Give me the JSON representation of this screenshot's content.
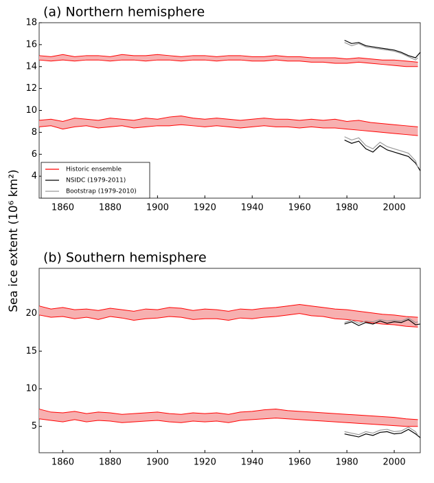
{
  "chart_data": [
    {
      "type": "band-line",
      "title": "(a) Northern hemisphere",
      "ylabel": "Sea ice extent (10⁶ km²)",
      "legend": "lower left",
      "xlim": [
        1850,
        2011
      ],
      "ylim": [
        2,
        18
      ],
      "xticks": [
        1860,
        1880,
        1900,
        1920,
        1940,
        1960,
        1980,
        2000
      ],
      "yticks": [
        4,
        6,
        8,
        10,
        12,
        14,
        16,
        18
      ],
      "x": [
        1850,
        1855,
        1860,
        1865,
        1870,
        1875,
        1880,
        1885,
        1890,
        1895,
        1900,
        1905,
        1910,
        1915,
        1920,
        1925,
        1930,
        1935,
        1940,
        1945,
        1950,
        1955,
        1960,
        1965,
        1970,
        1975,
        1980,
        1985,
        1990,
        1995,
        2000,
        2005,
        2010
      ],
      "bands": [
        {
          "name": "Historic ensemble",
          "color": "#ff0000",
          "fill": "#f7b0b0",
          "low": [
            14.6,
            14.5,
            14.6,
            14.5,
            14.6,
            14.6,
            14.5,
            14.6,
            14.6,
            14.5,
            14.6,
            14.6,
            14.5,
            14.6,
            14.6,
            14.5,
            14.6,
            14.6,
            14.5,
            14.5,
            14.6,
            14.5,
            14.5,
            14.4,
            14.4,
            14.3,
            14.3,
            14.4,
            14.3,
            14.2,
            14.1,
            14.0,
            14.0
          ],
          "high": [
            15.0,
            14.9,
            15.1,
            14.9,
            15.0,
            15.0,
            14.9,
            15.1,
            15.0,
            15.0,
            15.1,
            15.0,
            14.9,
            15.0,
            15.0,
            14.9,
            15.0,
            15.0,
            14.9,
            14.9,
            15.0,
            14.9,
            14.9,
            14.8,
            14.8,
            14.8,
            14.7,
            14.8,
            14.7,
            14.6,
            14.6,
            14.5,
            14.4
          ]
        },
        {
          "color": "#ff0000",
          "fill": "#f7b0b0",
          "low": [
            8.5,
            8.6,
            8.3,
            8.5,
            8.6,
            8.4,
            8.5,
            8.6,
            8.4,
            8.5,
            8.6,
            8.6,
            8.7,
            8.6,
            8.5,
            8.6,
            8.5,
            8.4,
            8.5,
            8.6,
            8.5,
            8.5,
            8.4,
            8.5,
            8.4,
            8.4,
            8.3,
            8.2,
            8.1,
            8.0,
            7.9,
            7.8,
            7.7
          ],
          "high": [
            9.1,
            9.2,
            9.0,
            9.3,
            9.2,
            9.1,
            9.3,
            9.2,
            9.1,
            9.3,
            9.2,
            9.4,
            9.5,
            9.3,
            9.2,
            9.3,
            9.2,
            9.1,
            9.2,
            9.3,
            9.2,
            9.2,
            9.1,
            9.2,
            9.1,
            9.2,
            9.0,
            9.1,
            8.9,
            8.8,
            8.7,
            8.6,
            8.5
          ]
        }
      ],
      "series": [
        {
          "name": "NSIDC (1979-2011)",
          "color": "#000000",
          "x": [
            1979,
            1982,
            1985,
            1988,
            1991,
            1994,
            1997,
            2000,
            2003,
            2006,
            2009,
            2011
          ],
          "values": [
            16.4,
            16.1,
            16.2,
            15.9,
            15.8,
            15.7,
            15.6,
            15.5,
            15.3,
            15.0,
            14.8,
            15.3
          ]
        },
        {
          "name": "Bootstrap (1979-2010)",
          "color": "#999999",
          "x": [
            1979,
            1982,
            1985,
            1988,
            1991,
            1994,
            1997,
            2000,
            2003,
            2006,
            2009,
            2010
          ],
          "values": [
            16.2,
            15.9,
            16.1,
            15.8,
            15.7,
            15.6,
            15.5,
            15.4,
            15.2,
            14.9,
            14.6,
            14.8
          ]
        },
        {
          "color": "#000000",
          "x": [
            1979,
            1982,
            1985,
            1988,
            1991,
            1994,
            1997,
            2000,
            2003,
            2006,
            2009,
            2011
          ],
          "values": [
            7.3,
            7.0,
            7.2,
            6.5,
            6.2,
            6.8,
            6.4,
            6.2,
            6.0,
            5.8,
            5.2,
            4.5
          ]
        },
        {
          "color": "#999999",
          "x": [
            1979,
            1982,
            1985,
            1988,
            1991,
            1994,
            1997,
            2000,
            2003,
            2006,
            2009,
            2010
          ],
          "values": [
            7.6,
            7.3,
            7.5,
            6.8,
            6.5,
            7.1,
            6.7,
            6.5,
            6.3,
            6.1,
            5.4,
            4.8
          ]
        }
      ]
    },
    {
      "type": "band-line",
      "title": "(b) Southern hemisphere",
      "xlim": [
        1850,
        2011
      ],
      "ylim": [
        1.5,
        26
      ],
      "xticks": [
        1860,
        1880,
        1900,
        1920,
        1940,
        1960,
        1980,
        2000
      ],
      "yticks": [
        5,
        10,
        15,
        20
      ],
      "x": [
        1850,
        1855,
        1860,
        1865,
        1870,
        1875,
        1880,
        1885,
        1890,
        1895,
        1900,
        1905,
        1910,
        1915,
        1920,
        1925,
        1930,
        1935,
        1940,
        1945,
        1950,
        1955,
        1960,
        1965,
        1970,
        1975,
        1980,
        1985,
        1990,
        1995,
        2000,
        2005,
        2010
      ],
      "bands": [
        {
          "color": "#ff0000",
          "fill": "#f7b0b0",
          "low": [
            19.8,
            19.5,
            19.6,
            19.3,
            19.5,
            19.2,
            19.6,
            19.4,
            19.1,
            19.3,
            19.4,
            19.6,
            19.5,
            19.2,
            19.3,
            19.3,
            19.1,
            19.4,
            19.3,
            19.5,
            19.6,
            19.8,
            20.0,
            19.7,
            19.6,
            19.3,
            19.2,
            19.0,
            18.8,
            18.6,
            18.5,
            18.3,
            18.2
          ],
          "high": [
            21.0,
            20.6,
            20.8,
            20.5,
            20.6,
            20.4,
            20.7,
            20.5,
            20.3,
            20.6,
            20.5,
            20.8,
            20.7,
            20.4,
            20.6,
            20.5,
            20.3,
            20.6,
            20.5,
            20.7,
            20.8,
            21.0,
            21.2,
            21.0,
            20.8,
            20.6,
            20.5,
            20.3,
            20.1,
            19.9,
            19.8,
            19.6,
            19.5
          ]
        },
        {
          "color": "#ff0000",
          "fill": "#f7b0b0",
          "low": [
            6.0,
            5.8,
            5.6,
            5.9,
            5.6,
            5.8,
            5.7,
            5.5,
            5.6,
            5.7,
            5.8,
            5.6,
            5.5,
            5.7,
            5.6,
            5.7,
            5.5,
            5.8,
            5.9,
            6.0,
            6.1,
            6.0,
            5.9,
            5.8,
            5.7,
            5.6,
            5.5,
            5.4,
            5.3,
            5.2,
            5.1,
            5.0,
            5.0
          ],
          "high": [
            7.3,
            6.9,
            6.8,
            7.0,
            6.7,
            6.9,
            6.8,
            6.6,
            6.7,
            6.8,
            6.9,
            6.7,
            6.6,
            6.8,
            6.7,
            6.8,
            6.6,
            6.9,
            7.0,
            7.2,
            7.3,
            7.1,
            7.0,
            6.9,
            6.8,
            6.7,
            6.6,
            6.5,
            6.4,
            6.3,
            6.2,
            6.0,
            5.9
          ]
        }
      ],
      "series": [
        {
          "color": "#000000",
          "x": [
            1979,
            1982,
            1985,
            1988,
            1991,
            1994,
            1997,
            2000,
            2003,
            2006,
            2009,
            2011
          ],
          "values": [
            18.6,
            18.9,
            18.4,
            18.8,
            18.6,
            19.0,
            18.7,
            18.9,
            18.8,
            19.2,
            18.5,
            18.6
          ]
        },
        {
          "color": "#999999",
          "x": [
            1979,
            1982,
            1985,
            1988,
            1991,
            1994,
            1997,
            2000,
            2003,
            2006,
            2009,
            2010
          ],
          "values": [
            18.8,
            19.1,
            18.7,
            19.0,
            18.9,
            19.2,
            19.0,
            19.1,
            19.0,
            19.4,
            18.8,
            18.9
          ]
        },
        {
          "color": "#000000",
          "x": [
            1979,
            1982,
            1985,
            1988,
            1991,
            1994,
            1997,
            2000,
            2003,
            2006,
            2009,
            2011
          ],
          "values": [
            4.0,
            3.8,
            3.6,
            4.0,
            3.8,
            4.2,
            4.3,
            4.0,
            4.1,
            4.6,
            4.0,
            3.5
          ]
        },
        {
          "color": "#999999",
          "x": [
            1979,
            1982,
            1985,
            1988,
            1991,
            1994,
            1997,
            2000,
            2003,
            2006,
            2009,
            2010
          ],
          "values": [
            4.3,
            4.1,
            3.9,
            4.3,
            4.1,
            4.5,
            4.6,
            4.3,
            4.4,
            4.9,
            4.3,
            3.8
          ]
        }
      ]
    }
  ]
}
